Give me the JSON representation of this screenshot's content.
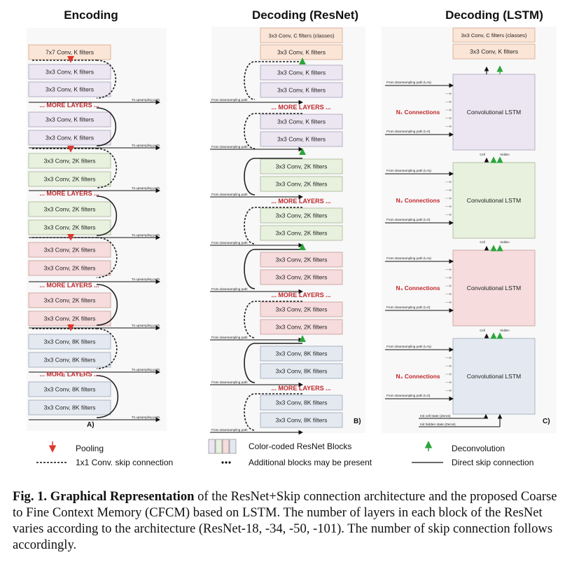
{
  "colors": {
    "orange": "#fbe5d6",
    "orange_border": "#d6a58c",
    "purple": "#ebe6f2",
    "purple_border": "#a9a1b8",
    "green": "#e8f1de",
    "green_border": "#a5b594",
    "pink": "#f6dcdc",
    "pink_border": "#c49a9a",
    "blue": "#e4e9f1",
    "blue_border": "#9aa5b6",
    "red_text": "#c0282d",
    "pool_arrow": "#e0362c",
    "deconv_arrow": "#2aa63a",
    "panel_bg": "#f7f7f7"
  },
  "titles": {
    "encoding": "Encoding",
    "decoding_resnet": "Decoding (ResNet)",
    "decoding_lstm": "Decoding (LSTM)"
  },
  "encoding": {
    "first_block": "7x7 Conv, K filters",
    "blocks": [
      "3x3 Conv, K filters",
      "3x3 Conv, K filters",
      "3x3 Conv, K filters",
      "3x3 Conv, K filters",
      "3x3 Conv, 2K filters",
      "3x3 Conv, 2K filters",
      "3x3 Conv, 2K filters",
      "3x3 Conv, 2K filters",
      "3x3 Conv, 2K filters",
      "3x3 Conv, 2K filters",
      "3x3 Conv, 2K filters",
      "3x3 Conv, 2K filters",
      "3x3 Conv, 8K filters",
      "3x3 Conv, 8K filters",
      "3x3 Conv, 8K filters",
      "3x3 Conv, 8K filters"
    ],
    "more_layers": "... MORE LAYERS ...",
    "to_upsampling": "To upsampling path",
    "panel_label": "A)"
  },
  "decoding_resnet": {
    "top_blocks": [
      "3x3 Conv, C filters (classes)",
      "3x3 Conv, K filters"
    ],
    "blocks": [
      "3x3 Conv, K filters",
      "3x3 Conv, K filters",
      "3x3 Conv, K filters",
      "3x3 Conv, K filters",
      "3x3 Conv, 2K filters",
      "3x3 Conv, 2K filters",
      "3x3 Conv, 2K filters",
      "3x3 Conv, 2K filters",
      "3x3 Conv, 2K filters",
      "3x3 Conv, 2K filters",
      "3x3 Conv, 2K filters",
      "3x3 Conv, 2K filters",
      "3x3 Conv, 8K filters",
      "3x3 Conv, 8K filters",
      "3x3 Conv, 8K filters",
      "3x3 Conv, 8K filters"
    ],
    "more_layers": "... MORE LAYERS ...",
    "from_downsampling": "From downsampling path",
    "panel_label": "B)"
  },
  "decoding_lstm": {
    "top_blocks": [
      "3x3 Conv, C filters (classes)",
      "3x3 Conv, K filters"
    ],
    "lstm_label": "Convolutional LSTM",
    "connections": [
      "N₁ Connections",
      "N₂ Connections",
      "N₃ Connections",
      "N₄ Connections"
    ],
    "from_top": "From downsampling path (t=Nᵢ)",
    "from_bottom": "From downsampling path (t=0)",
    "cell": "Cell",
    "hidden": "Hidden",
    "init_cell": "Init cell state (Zeros)",
    "init_hidden": "Init hidden state (Zeros)",
    "panel_label": "C)"
  },
  "legend": {
    "pooling": "Pooling",
    "skip_1x1": "1x1 Conv. skip connection",
    "color_coded": "Color-coded ResNet Blocks",
    "additional": "Additional blocks may be present",
    "deconvolution": "Deconvolution",
    "direct_skip": "Direct skip connection"
  },
  "caption": {
    "fig": "Fig. 1.",
    "bold_title": "Graphical Representation",
    "text": "of the ResNet+Skip connection architecture and the proposed Coarse to Fine Context Memory (CFCM) based on LSTM. The number of layers in each block of the ResNet varies according to the architecture (ResNet-18, -34, -50, -101). The number of skip connection follows accordingly."
  }
}
